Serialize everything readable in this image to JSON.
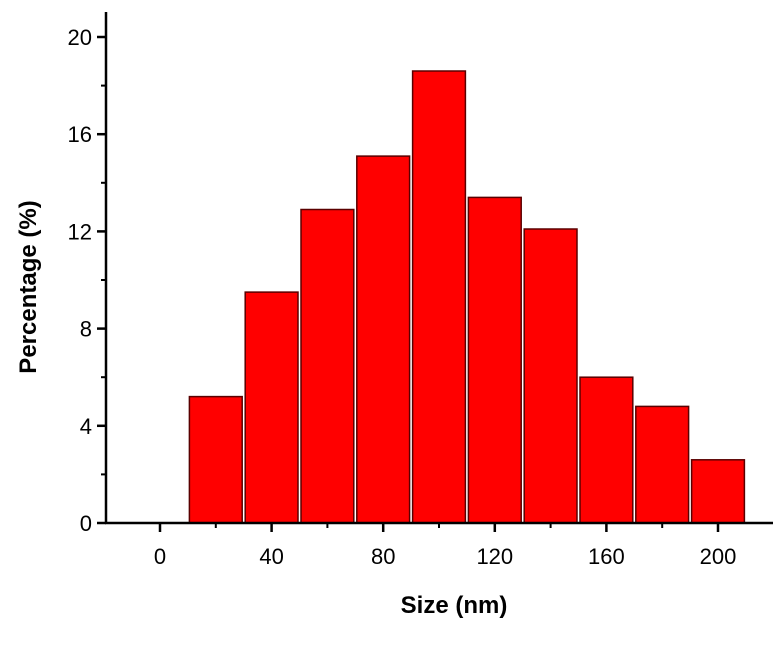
{
  "chart_data": {
    "type": "bar",
    "title": "",
    "xlabel": "Size (nm)",
    "ylabel": "Percentage (%)",
    "xlim": [
      -20,
      220
    ],
    "ylim": [
      0,
      21
    ],
    "bin_width": 20,
    "x_ticks": [
      0,
      40,
      80,
      120,
      160,
      200
    ],
    "y_ticks": [
      0,
      4,
      8,
      12,
      16,
      20
    ],
    "bar_color": "#ff0000",
    "grid": false,
    "legend": "none",
    "bins": [
      {
        "center": 20,
        "value": 5.2
      },
      {
        "center": 40,
        "value": 9.5
      },
      {
        "center": 60,
        "value": 12.9
      },
      {
        "center": 80,
        "value": 15.1
      },
      {
        "center": 100,
        "value": 18.6
      },
      {
        "center": 120,
        "value": 13.4
      },
      {
        "center": 140,
        "value": 12.1
      },
      {
        "center": 160,
        "value": 6.0
      },
      {
        "center": 180,
        "value": 4.8
      },
      {
        "center": 200,
        "value": 2.6
      }
    ]
  }
}
